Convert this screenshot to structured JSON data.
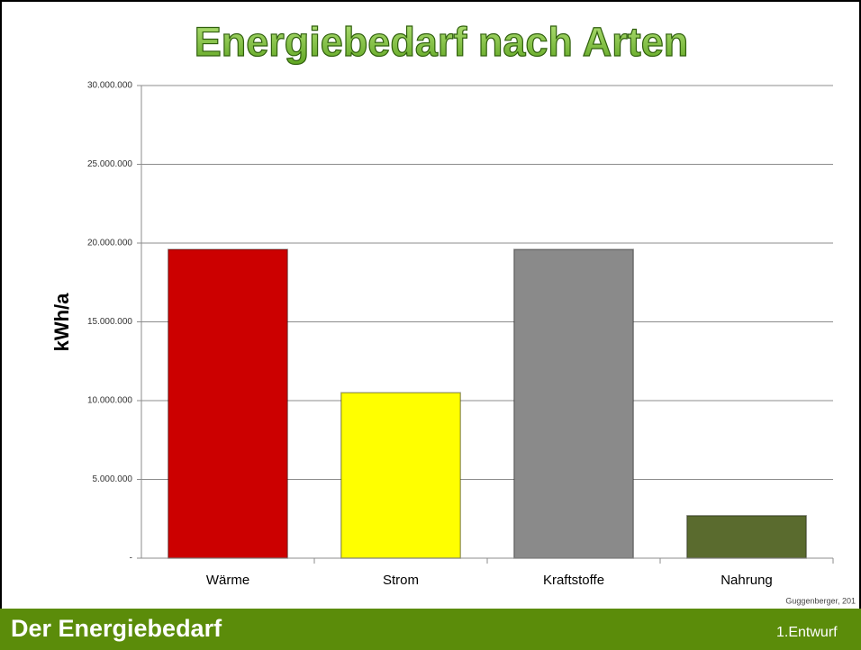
{
  "chart_data": {
    "type": "bar",
    "title": "Energiebedarf nach Arten",
    "y_label": "kWh/a",
    "categories": [
      "Wärme",
      "Strom",
      "Kraftstoffe",
      "Nahrung"
    ],
    "values": [
      19600000,
      10500000,
      19600000,
      2700000
    ],
    "colors": [
      "#cc0000",
      "#ffff00",
      "#8a8a8a",
      "#5a6b2e"
    ],
    "ylim": [
      0,
      30000000
    ],
    "yticks": [
      {
        "value": 0,
        "label": "-"
      },
      {
        "value": 5000000,
        "label": "5.000.000"
      },
      {
        "value": 10000000,
        "label": "10.000.000"
      },
      {
        "value": 15000000,
        "label": "15.000.000"
      },
      {
        "value": 20000000,
        "label": "20.000.000"
      },
      {
        "value": 25000000,
        "label": "25.000.000"
      },
      {
        "value": 30000000,
        "label": "30.000.000"
      }
    ],
    "grid": true
  },
  "source": "Guggenberger, 201",
  "footer": {
    "title": "Der Energiebedarf",
    "note": "1.Entwurf"
  }
}
